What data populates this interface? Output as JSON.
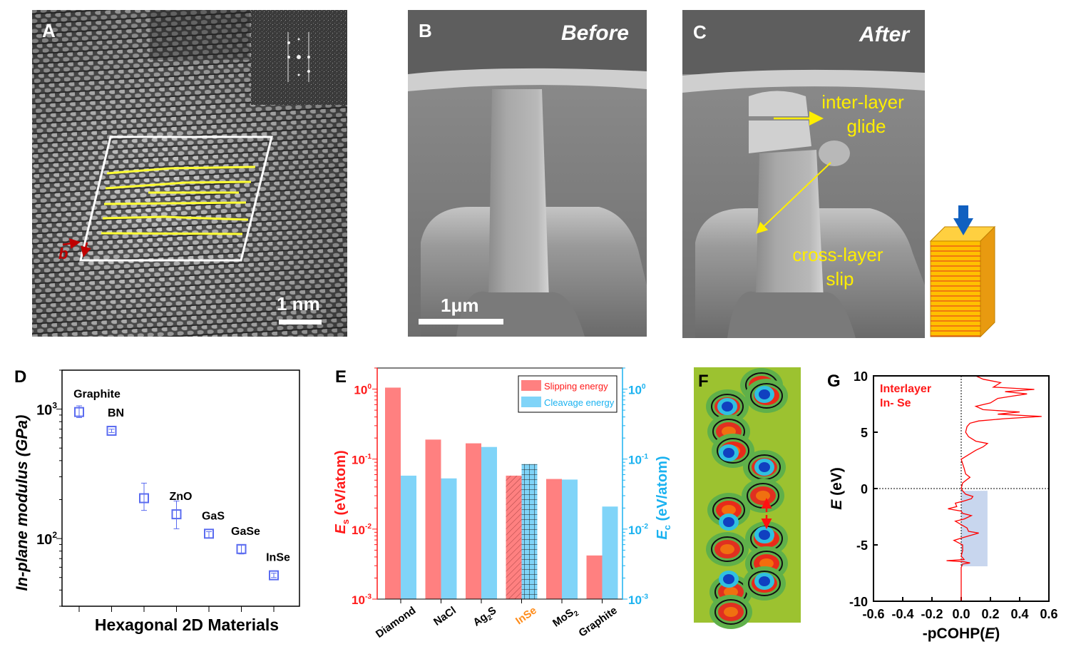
{
  "panels": {
    "A": {
      "label": "A",
      "scale_bar": "1 nm",
      "vector_label": "b"
    },
    "B": {
      "label": "B",
      "state": "Before",
      "scale_bar": "1μm"
    },
    "C": {
      "label": "C",
      "state": "After",
      "annotation_glide": [
        "inter-layer",
        "glide"
      ],
      "annotation_slip": [
        "cross-layer",
        "slip"
      ]
    },
    "F": {
      "label": "F"
    }
  },
  "colors": {
    "slipping": "#ff8080",
    "cleavage": "#80d4f8",
    "left_axis": "#ff1a1a",
    "right_axis": "#1ab2f0",
    "marker": "#5b6cf0",
    "annotation_yellow": "#ffee00",
    "highlight_category": "#ff8c1a",
    "pcohp_line": "#ff0000",
    "pcohp_shade": "#c8d6ee"
  },
  "chart_data": [
    {
      "panel": "D",
      "type": "scatter",
      "xlabel": "Hexagonal 2D Materials",
      "ylabel": "In-plane modulus (GPa)",
      "yscale": "log",
      "ylim": [
        30,
        2000
      ],
      "yticks": [
        {
          "base": "10",
          "exp": "2",
          "value": 100
        },
        {
          "base": "10",
          "exp": "3",
          "value": 1000
        }
      ],
      "points": [
        {
          "label": "Graphite",
          "value": 950,
          "err_low": 860,
          "err_high": 1060
        },
        {
          "label": "BN",
          "value": 680,
          "err_low": 660,
          "err_high": 700
        },
        {
          "label": "",
          "value": 205,
          "err_low": 165,
          "err_high": 268
        },
        {
          "label": "ZnO",
          "value": 154,
          "err_low": 119,
          "err_high": 195
        },
        {
          "label": "GaS",
          "value": 109,
          "err_low": 101,
          "err_high": 113
        },
        {
          "label": "GaSe",
          "value": 83,
          "err_low": 76,
          "err_high": 89
        },
        {
          "label": "InSe",
          "value": 52,
          "err_low": 50,
          "err_high": 54
        }
      ],
      "grid": false
    },
    {
      "panel": "E",
      "type": "bar",
      "categories": [
        "Diamond",
        "NaCl",
        "Ag2S",
        "InSe",
        "MoS2",
        "Graphite"
      ],
      "category_labels": [
        {
          "main": "Diamond",
          "sub": "",
          "tail": ""
        },
        {
          "main": "NaCl",
          "sub": "",
          "tail": ""
        },
        {
          "main": "Ag",
          "sub": "2",
          "tail": "S"
        },
        {
          "main": "InSe",
          "sub": "",
          "tail": ""
        },
        {
          "main": "MoS",
          "sub": "2",
          "tail": ""
        },
        {
          "main": "Graphite",
          "sub": "",
          "tail": ""
        }
      ],
      "highlight_category": "InSe",
      "series": [
        {
          "name": "Slipping energy",
          "values": [
            1.05,
            0.19,
            0.168,
            0.058,
            0.052,
            0.0042
          ]
        },
        {
          "name": "Cleavage energy",
          "values": [
            0.058,
            0.053,
            0.149,
            0.085,
            0.051,
            0.021
          ]
        }
      ],
      "yscale": "log",
      "ylim": [
        0.001,
        2
      ],
      "yticks": [
        {
          "base": "10",
          "exp": "-3"
        },
        {
          "base": "10",
          "exp": "-2"
        },
        {
          "base": "10",
          "exp": "-1"
        },
        {
          "base": "10",
          "exp": "0"
        }
      ],
      "ylabel_left": {
        "symbol": "E",
        "sub": "s",
        "unit": " (eV/atom)"
      },
      "ylabel_right": {
        "symbol": "E",
        "sub": "c",
        "unit": " (eV/atom)"
      },
      "legend_placement": "top-right",
      "grid": false
    },
    {
      "panel": "G",
      "type": "line",
      "legend_text": [
        "Interlayer",
        "In- Se"
      ],
      "xlabel": {
        "prefix": "-pCOHP(",
        "symbol": "E",
        "suffix": ")"
      },
      "ylabel": {
        "symbol": "E",
        "unit": " (eV)"
      },
      "xlim": [
        -0.6,
        0.6
      ],
      "ylim": [
        -10,
        10
      ],
      "xticks": [
        "-0.6",
        "-0.4",
        "-0.2",
        "0.0",
        "0.2",
        "0.4",
        "0.6"
      ],
      "yticks": [
        "-10",
        "-5",
        "0",
        "5",
        "10"
      ],
      "shaded_region": {
        "x": [
          0,
          0.18
        ],
        "y": [
          -6.9,
          -0.2
        ]
      },
      "reference_lines": {
        "x": 0,
        "y": 0
      },
      "points": [
        [
          -10,
          0
        ],
        [
          -7,
          0
        ],
        [
          -6.7,
          0.01
        ],
        [
          -6.6,
          0.06
        ],
        [
          -6.5,
          0.02
        ],
        [
          -6.4,
          -0.1
        ],
        [
          -6.3,
          0.02
        ],
        [
          -6.0,
          0.0
        ],
        [
          -5.5,
          0.01
        ],
        [
          -5,
          0.01
        ],
        [
          -4.6,
          -0.05
        ],
        [
          -4.4,
          0.0
        ],
        [
          -4.1,
          0.08
        ],
        [
          -3.95,
          0.12
        ],
        [
          -3.8,
          0.05
        ],
        [
          -3.5,
          0.04
        ],
        [
          -3.2,
          0.0
        ],
        [
          -2.9,
          -0.04
        ],
        [
          -2.7,
          0.02
        ],
        [
          -2.4,
          0.07
        ],
        [
          -2.2,
          0.01
        ],
        [
          -2.0,
          0.0
        ],
        [
          -1.8,
          -0.09
        ],
        [
          -1.6,
          -0.03
        ],
        [
          -1.3,
          -0.04
        ],
        [
          -1.1,
          0.02
        ],
        [
          -0.9,
          0.07
        ],
        [
          -0.7,
          0.08
        ],
        [
          -0.5,
          0.03
        ],
        [
          -0.2,
          0.01
        ],
        [
          0,
          0
        ],
        [
          0.5,
          0.01
        ],
        [
          1.0,
          0.06
        ],
        [
          1.3,
          0.03
        ],
        [
          1.8,
          0.02
        ],
        [
          2.2,
          0.01
        ],
        [
          2.6,
          0.0
        ],
        [
          3.0,
          0.05
        ],
        [
          3.4,
          0.1
        ],
        [
          3.7,
          0.15
        ],
        [
          4.0,
          0.18
        ],
        [
          4.2,
          0.1
        ],
        [
          4.6,
          0.05
        ],
        [
          5.0,
          0.03
        ],
        [
          5.5,
          0.04
        ],
        [
          5.8,
          0.06
        ],
        [
          6.0,
          0.12
        ],
        [
          6.2,
          0.3
        ],
        [
          6.4,
          0.55
        ],
        [
          6.6,
          0.25
        ],
        [
          6.8,
          0.4
        ],
        [
          7.0,
          0.15
        ],
        [
          7.3,
          0.1
        ],
        [
          7.6,
          0.2
        ],
        [
          8.0,
          0.25
        ],
        [
          8.2,
          0.35
        ],
        [
          8.4,
          0.45
        ],
        [
          8.6,
          0.3
        ],
        [
          8.8,
          0.5
        ],
        [
          9.0,
          0.22
        ],
        [
          9.4,
          0.27
        ],
        [
          9.7,
          0.15
        ],
        [
          10,
          0.1
        ]
      ]
    }
  ]
}
